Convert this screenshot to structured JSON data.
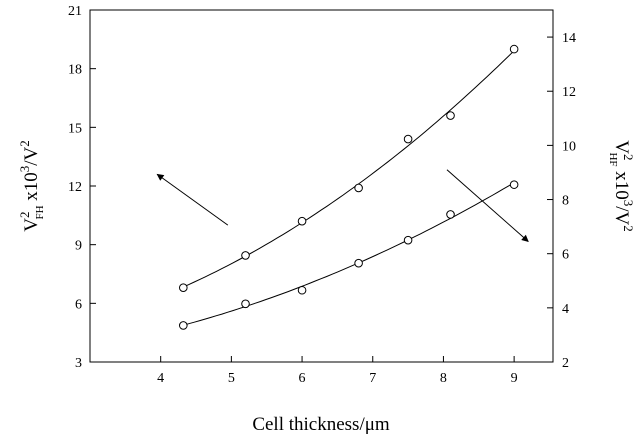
{
  "chart_data": {
    "type": "scatter",
    "xlabel": "Cell thickness/μm",
    "x_ticks": [
      "4",
      "5",
      "6",
      "7",
      "8",
      "9"
    ],
    "xlim": [
      3.0,
      9.55
    ],
    "y_left": {
      "label_base": "V",
      "label_sup": "2",
      "label_sub": "FH",
      "label_rest": " x10",
      "label_exp": "3",
      "label_unit": "/V",
      "label_unit_sup": "2",
      "ylim": [
        3,
        21
      ],
      "ticks": [
        "3",
        "6",
        "9",
        "12",
        "15",
        "18",
        "21"
      ]
    },
    "y_right": {
      "label_base": "V",
      "label_sup": "2",
      "label_sub": "HF",
      "label_rest": " x10",
      "label_exp": "3",
      "label_unit": "/V",
      "label_unit_sup": "2",
      "ylim": [
        2,
        15
      ],
      "ticks": [
        "2",
        "4",
        "6",
        "8",
        "10",
        "12",
        "14"
      ]
    },
    "series": [
      {
        "axis": "left",
        "marker": "open-circle",
        "fit": "curve",
        "points": [
          {
            "x": 4.32,
            "y": 6.8
          },
          {
            "x": 5.2,
            "y": 8.45
          },
          {
            "x": 6.0,
            "y": 10.2
          },
          {
            "x": 6.8,
            "y": 11.9
          },
          {
            "x": 7.5,
            "y": 14.4
          },
          {
            "x": 8.1,
            "y": 15.6
          },
          {
            "x": 9.0,
            "y": 19.0
          }
        ]
      },
      {
        "axis": "right",
        "marker": "open-circle",
        "fit": "curve",
        "points": [
          {
            "x": 4.32,
            "y": 3.35
          },
          {
            "x": 5.2,
            "y": 4.15
          },
          {
            "x": 6.0,
            "y": 4.65
          },
          {
            "x": 6.8,
            "y": 5.65
          },
          {
            "x": 7.5,
            "y": 6.5
          },
          {
            "x": 8.1,
            "y": 7.45
          },
          {
            "x": 9.0,
            "y": 8.55
          }
        ]
      }
    ],
    "annotations": [
      {
        "type": "arrow",
        "points_to": "left-axis",
        "from": {
          "x": 4.95,
          "y": 10.0
        },
        "to": {
          "x": 3.95,
          "y": 12.6
        }
      },
      {
        "type": "arrow",
        "points_to": "right-axis",
        "from": {
          "x": 8.05,
          "y": 9.1
        },
        "to": {
          "x": 9.2,
          "y": 6.45
        }
      }
    ],
    "grid": false,
    "legend": "none"
  }
}
